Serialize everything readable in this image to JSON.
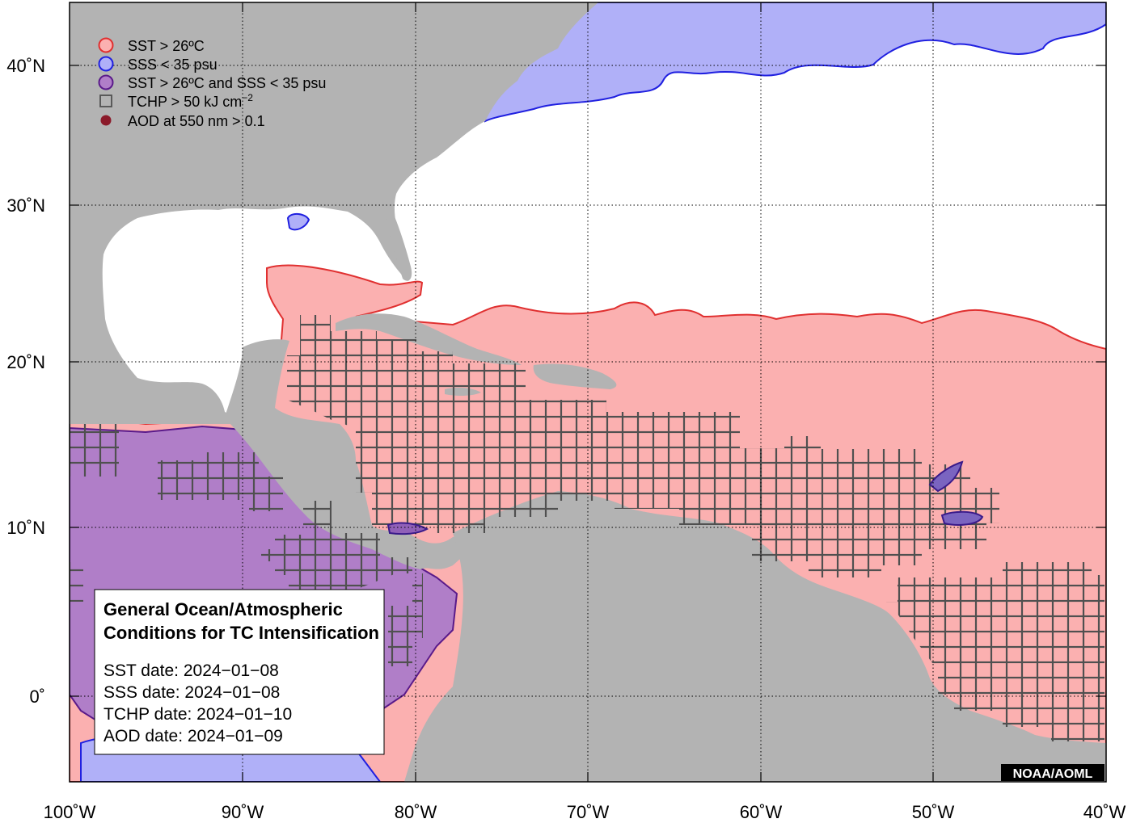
{
  "map": {
    "colors": {
      "land": "#b3b3b3",
      "ocean": "#ffffff",
      "sst": "#fbb0b0",
      "sst_edge": "#e03030",
      "sss": "#b0b0f8",
      "sss_edge": "#2020e0",
      "both": "#b07ec8",
      "both_edge": "#5a1a8a",
      "tchp_grid": "#505050",
      "aod": "#8b1a2a"
    },
    "extent": {
      "lon": [
        -100,
        -40
      ],
      "lat": [
        -5,
        44
      ]
    },
    "x_ticks": [
      {
        "lon": -100,
        "label": "100˚W"
      },
      {
        "lon": -90,
        "label": "90˚W"
      },
      {
        "lon": -80,
        "label": "80˚W"
      },
      {
        "lon": -70,
        "label": "70˚W"
      },
      {
        "lon": -60,
        "label": "60˚W"
      },
      {
        "lon": -50,
        "label": "50˚W"
      },
      {
        "lon": -40,
        "label": "40˚W"
      }
    ],
    "y_ticks": [
      {
        "lat": 40,
        "label": "40˚N"
      },
      {
        "lat": 30,
        "label": "30˚N"
      },
      {
        "lat": 20,
        "label": "20˚N"
      },
      {
        "lat": 10,
        "label": "10˚N"
      },
      {
        "lat": 0,
        "label": "0˚"
      }
    ]
  },
  "legend": {
    "sst": "SST > 26ºC",
    "sss": "SSS < 35 psu",
    "both": "SST > 26ºC and SSS < 35 psu",
    "tchp_prefix": "TCHP > 50 kJ cm",
    "tchp_sup": "−2",
    "aod": "AOD at 550 nm > 0.1"
  },
  "info": {
    "title_line1": "General Ocean/Atmospheric",
    "title_line2": "Conditions for TC Intensification",
    "sst_date": "SST date:    2024−01−08",
    "sss_date": "SSS date:    2024−01−08",
    "tchp_date": "TCHP date: 2024−01−10",
    "aod_date": "AOD date:   2024−01−09"
  },
  "credit": "NOAA/AOML"
}
